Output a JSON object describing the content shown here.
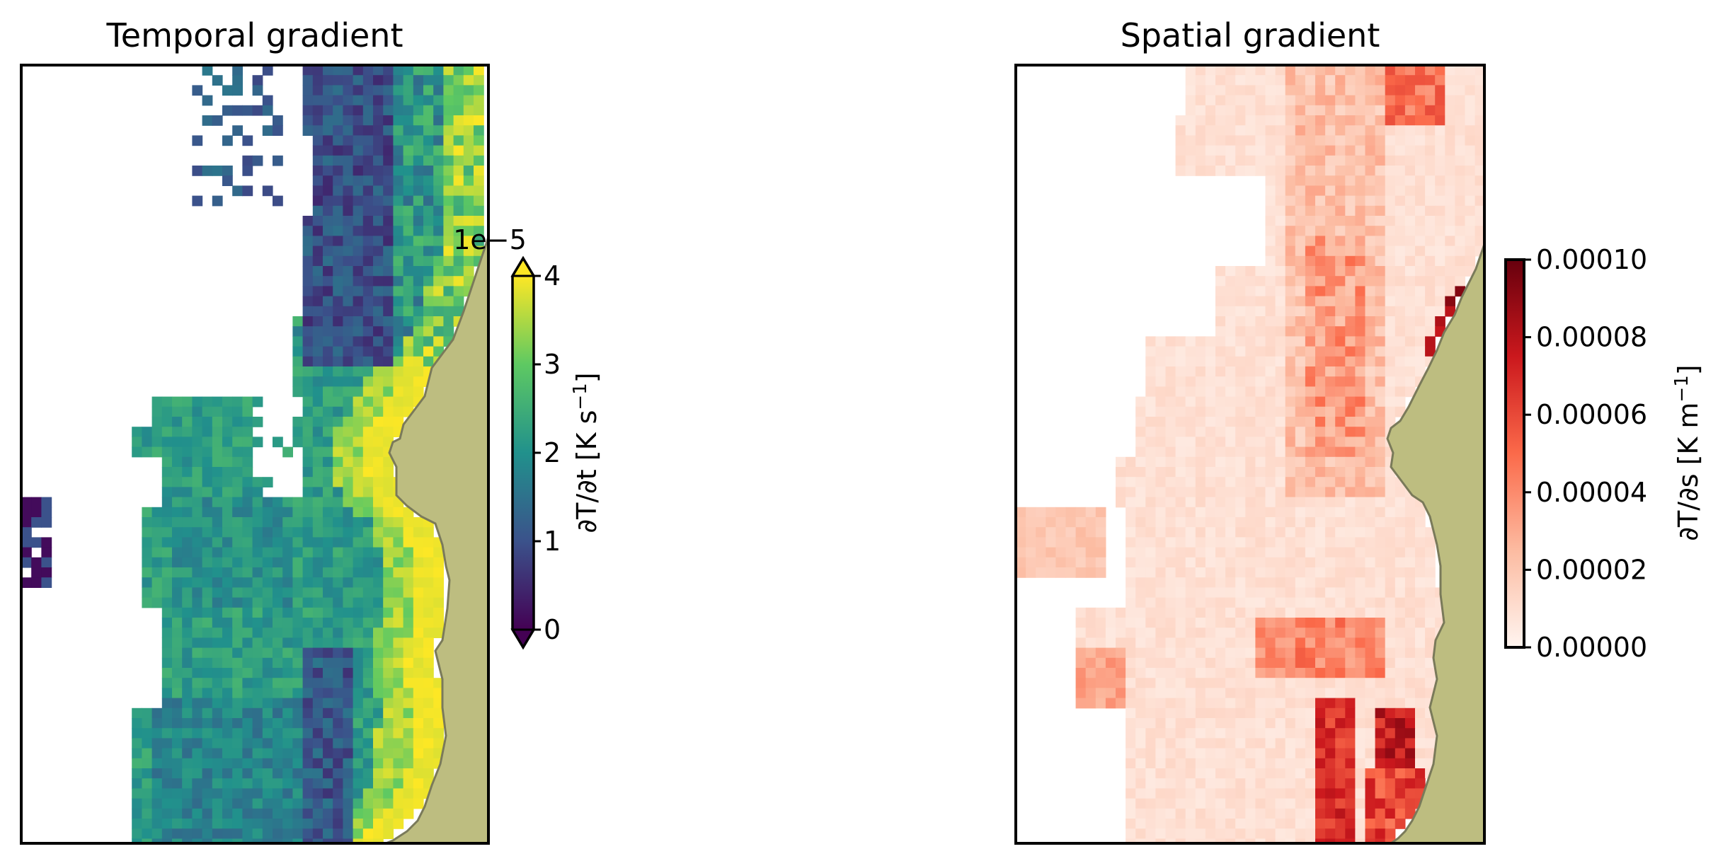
{
  "chart_data": [
    {
      "type": "heatmap",
      "title": "Temporal gradient",
      "colormap": "viridis",
      "colorbar": {
        "label_prefix": "∂T/∂t [K s",
        "label_sup": "−1",
        "label_suffix": "]",
        "scale_factor": "1e−5",
        "ticks": [
          "0",
          "1",
          "2",
          "3",
          "4"
        ],
        "range": [
          0,
          4
        ],
        "extend": "both"
      },
      "land_color": "#bdbd80",
      "grid_description": "gridded sea surface temperature tendency with land at right; high values (yellow) along the coast, low values (purple) offshore in the north"
    },
    {
      "type": "heatmap",
      "title": "Spatial gradient",
      "colormap": "Reds",
      "colorbar": {
        "label_prefix": "∂T/∂s [K m",
        "label_sup": "−1",
        "label_suffix": "]",
        "ticks": [
          "0.00000",
          "0.00002",
          "0.00004",
          "0.00006",
          "0.00008",
          "0.00010"
        ],
        "range": [
          0,
          0.0001
        ]
      },
      "land_color": "#bdbd80",
      "grid_description": "gridded spatial temperature gradient with land at right; strongest gradients (dark red) near the coast in the south"
    }
  ]
}
